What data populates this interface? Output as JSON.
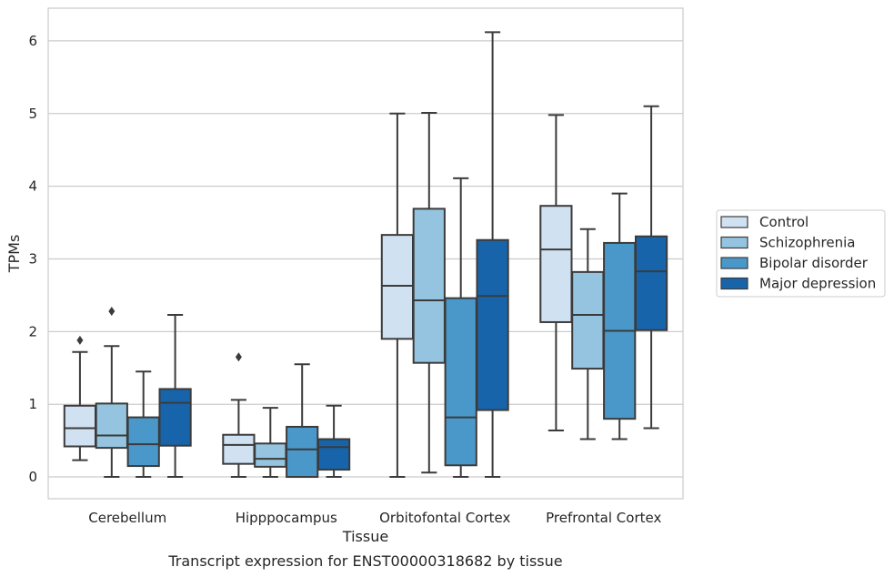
{
  "chart_data": {
    "type": "box",
    "title": "",
    "caption": "Transcript expression for ENST00000318682 by tissue",
    "xlabel": "Tissue",
    "ylabel": "TPMs",
    "ylim": [
      -0.3,
      6.45
    ],
    "yticks": [
      0,
      1,
      2,
      3,
      4,
      5,
      6
    ],
    "grid": "horizontal",
    "legend_position": "right",
    "categories": [
      "Cerebellum",
      "Hipppocampus",
      "Orbitofontal Cortex",
      "Prefrontal Cortex"
    ],
    "series": [
      {
        "name": "Control",
        "color": "#d0e1f2",
        "boxes": [
          {
            "whisker_low": 0.23,
            "q1": 0.42,
            "median": 0.67,
            "q3": 0.98,
            "whisker_high": 1.72,
            "outliers": [
              1.88
            ]
          },
          {
            "whisker_low": 0.0,
            "q1": 0.18,
            "median": 0.44,
            "q3": 0.58,
            "whisker_high": 1.06,
            "outliers": [
              1.65
            ]
          },
          {
            "whisker_low": 0.0,
            "q1": 1.9,
            "median": 2.63,
            "q3": 3.33,
            "whisker_high": 5.0,
            "outliers": []
          },
          {
            "whisker_low": 0.64,
            "q1": 2.13,
            "median": 3.13,
            "q3": 3.73,
            "whisker_high": 4.98,
            "outliers": []
          }
        ]
      },
      {
        "name": "Schizophrenia",
        "color": "#94c4df",
        "boxes": [
          {
            "whisker_low": 0.0,
            "q1": 0.4,
            "median": 0.57,
            "q3": 1.01,
            "whisker_high": 1.8,
            "outliers": [
              2.28
            ]
          },
          {
            "whisker_low": 0.0,
            "q1": 0.14,
            "median": 0.25,
            "q3": 0.46,
            "whisker_high": 0.95,
            "outliers": []
          },
          {
            "whisker_low": 0.06,
            "q1": 1.57,
            "median": 2.43,
            "q3": 3.69,
            "whisker_high": 5.01,
            "outliers": []
          },
          {
            "whisker_low": 0.52,
            "q1": 1.49,
            "median": 2.23,
            "q3": 2.82,
            "whisker_high": 3.41,
            "outliers": []
          }
        ]
      },
      {
        "name": "Bipolar disorder",
        "color": "#4a98c9",
        "boxes": [
          {
            "whisker_low": 0.0,
            "q1": 0.15,
            "median": 0.45,
            "q3": 0.82,
            "whisker_high": 1.45,
            "outliers": []
          },
          {
            "whisker_low": 0.0,
            "q1": 0.0,
            "median": 0.38,
            "q3": 0.69,
            "whisker_high": 1.55,
            "outliers": []
          },
          {
            "whisker_low": 0.0,
            "q1": 0.16,
            "median": 0.82,
            "q3": 2.46,
            "whisker_high": 4.11,
            "outliers": []
          },
          {
            "whisker_low": 0.52,
            "q1": 0.8,
            "median": 2.01,
            "q3": 3.22,
            "whisker_high": 3.9,
            "outliers": []
          }
        ]
      },
      {
        "name": "Major depression",
        "color": "#1764ab",
        "boxes": [
          {
            "whisker_low": 0.0,
            "q1": 0.43,
            "median": 1.02,
            "q3": 1.21,
            "whisker_high": 2.23,
            "outliers": []
          },
          {
            "whisker_low": 0.0,
            "q1": 0.1,
            "median": 0.41,
            "q3": 0.52,
            "whisker_high": 0.98,
            "outliers": []
          },
          {
            "whisker_low": 0.0,
            "q1": 0.92,
            "median": 2.49,
            "q3": 3.26,
            "whisker_high": 6.12,
            "outliers": []
          },
          {
            "whisker_low": 0.67,
            "q1": 2.02,
            "median": 2.83,
            "q3": 3.31,
            "whisker_high": 5.1,
            "outliers": []
          }
        ]
      }
    ]
  }
}
